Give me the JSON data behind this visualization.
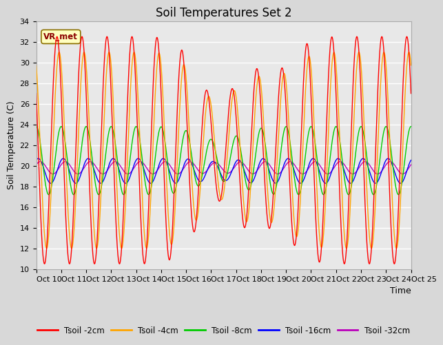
{
  "title": "Soil Temperatures Set 2",
  "xlabel": "Time",
  "ylabel": "Soil Temperature (C)",
  "xlim": [
    0,
    360
  ],
  "ylim": [
    10,
    34
  ],
  "yticks": [
    10,
    12,
    14,
    16,
    18,
    20,
    22,
    24,
    26,
    28,
    30,
    32,
    34
  ],
  "xtick_labels": [
    "Oct 10",
    "Oct 11",
    "Oct 12",
    "Oct 13",
    "Oct 14",
    "Oct 15",
    "Oct 16",
    "Oct 17",
    "Oct 18",
    "Oct 19",
    "Oct 20",
    "Oct 21",
    "Oct 22",
    "Oct 23",
    "Oct 24",
    "Oct 25"
  ],
  "xtick_positions": [
    0,
    24,
    48,
    72,
    96,
    120,
    144,
    168,
    192,
    216,
    240,
    264,
    288,
    312,
    336,
    360
  ],
  "annotation_text": "VR_met",
  "series": {
    "Tsoil -2cm": {
      "color": "#FF0000"
    },
    "Tsoil -4cm": {
      "color": "#FFA500"
    },
    "Tsoil -8cm": {
      "color": "#00CC00"
    },
    "Tsoil -16cm": {
      "color": "#0000FF"
    },
    "Tsoil -32cm": {
      "color": "#BB00BB"
    }
  },
  "fig_bg": "#D8D8D8",
  "plot_bg": "#E8E8E8",
  "grid_color": "#FFFFFF",
  "title_fontsize": 12,
  "tick_fontsize": 8,
  "label_fontsize": 9
}
